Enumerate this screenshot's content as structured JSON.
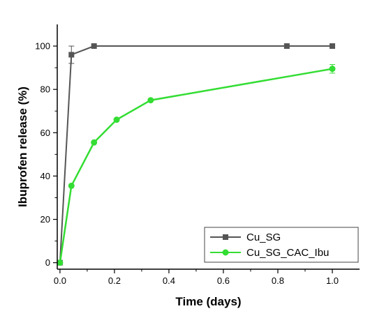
{
  "chart_data": {
    "type": "line",
    "xlabel": "Time (days)",
    "ylabel": "Ibuprofen release (%)",
    "xlim": [
      -0.01,
      1.1
    ],
    "ylim": [
      -3,
      110
    ],
    "xticks": [
      "0.0",
      "0.2",
      "0.4",
      "0.6",
      "0.8",
      "1.0"
    ],
    "yticks": [
      "0",
      "20",
      "40",
      "60",
      "80",
      "100"
    ],
    "legend_position": "bottom-right",
    "series": [
      {
        "name": "Cu_SG",
        "color": "#555555",
        "marker": "square",
        "x": [
          0,
          0.042,
          0.125,
          0.833,
          1.0
        ],
        "y": [
          0,
          96,
          100,
          100,
          100
        ],
        "error": [
          0,
          4,
          0,
          0,
          0
        ]
      },
      {
        "name": "Cu_SG_CAC_Ibu",
        "color": "#33dd33",
        "marker": "circle",
        "x": [
          0,
          0.042,
          0.125,
          0.208,
          0.333,
          1.0
        ],
        "y": [
          0,
          35.5,
          55.5,
          66,
          75,
          89.5
        ],
        "error": [
          0,
          0,
          0,
          0,
          0,
          2
        ]
      }
    ]
  }
}
